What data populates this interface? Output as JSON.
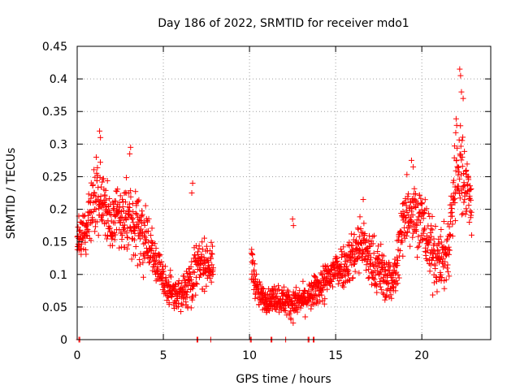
{
  "chart_data": {
    "type": "scatter",
    "title": "Day 186 of 2022, SRMTID for receiver mdo1",
    "xlabel": "GPS time / hours",
    "ylabel": "SRMTID / TECUs",
    "xlim": [
      0,
      24
    ],
    "ylim": [
      0,
      0.45
    ],
    "x_ticks": [
      0,
      5,
      10,
      15,
      20
    ],
    "x_tick_labels": [
      "0",
      "5",
      "10",
      "15",
      "20"
    ],
    "y_ticks": [
      0,
      0.05,
      0.1,
      0.15,
      0.2,
      0.25,
      0.3,
      0.35,
      0.4,
      0.45
    ],
    "y_tick_labels": [
      "0",
      "0.05",
      "0.1",
      "0.15",
      "0.2",
      "0.25",
      "0.3",
      "0.35",
      "0.4",
      "0.45"
    ],
    "grid": true,
    "marker": "plus",
    "series": [
      {
        "name": "SRMTID",
        "color": "#ff0000",
        "profile": [
          [
            0.0,
            0.15,
            0.03
          ],
          [
            0.5,
            0.17,
            0.04
          ],
          [
            1.0,
            0.21,
            0.05
          ],
          [
            1.5,
            0.22,
            0.05
          ],
          [
            2.0,
            0.18,
            0.05
          ],
          [
            2.5,
            0.19,
            0.05
          ],
          [
            3.0,
            0.19,
            0.05
          ],
          [
            3.5,
            0.17,
            0.05
          ],
          [
            4.0,
            0.15,
            0.04
          ],
          [
            4.5,
            0.12,
            0.03
          ],
          [
            5.0,
            0.09,
            0.025
          ],
          [
            5.5,
            0.075,
            0.02
          ],
          [
            6.0,
            0.07,
            0.02
          ],
          [
            6.5,
            0.09,
            0.04
          ],
          [
            7.0,
            0.11,
            0.04
          ],
          [
            7.5,
            0.12,
            0.03
          ],
          [
            7.9,
            0.11,
            0.03
          ],
          [
            10.1,
            0.12,
            0.03
          ],
          [
            10.5,
            0.07,
            0.02
          ],
          [
            11.0,
            0.06,
            0.015
          ],
          [
            11.5,
            0.065,
            0.02
          ],
          [
            12.0,
            0.06,
            0.02
          ],
          [
            12.5,
            0.055,
            0.02
          ],
          [
            13.0,
            0.06,
            0.02
          ],
          [
            13.5,
            0.065,
            0.02
          ],
          [
            14.0,
            0.08,
            0.025
          ],
          [
            14.5,
            0.09,
            0.03
          ],
          [
            15.0,
            0.11,
            0.03
          ],
          [
            15.5,
            0.115,
            0.03
          ],
          [
            16.0,
            0.13,
            0.04
          ],
          [
            16.5,
            0.15,
            0.04
          ],
          [
            17.0,
            0.12,
            0.04
          ],
          [
            17.5,
            0.11,
            0.04
          ],
          [
            18.0,
            0.09,
            0.03
          ],
          [
            18.5,
            0.1,
            0.04
          ],
          [
            19.0,
            0.2,
            0.05
          ],
          [
            19.5,
            0.2,
            0.05
          ],
          [
            20.0,
            0.18,
            0.05
          ],
          [
            20.5,
            0.14,
            0.05
          ],
          [
            21.0,
            0.12,
            0.04
          ],
          [
            21.5,
            0.13,
            0.05
          ],
          [
            22.0,
            0.27,
            0.08
          ],
          [
            22.5,
            0.25,
            0.06
          ],
          [
            22.9,
            0.2,
            0.04
          ]
        ],
        "peaks": [
          [
            1.3,
            0.32
          ],
          [
            1.35,
            0.31
          ],
          [
            3.1,
            0.295
          ],
          [
            3.05,
            0.285
          ],
          [
            6.7,
            0.24
          ],
          [
            6.65,
            0.225
          ],
          [
            12.5,
            0.185
          ],
          [
            12.55,
            0.175
          ],
          [
            16.6,
            0.215
          ],
          [
            19.4,
            0.275
          ],
          [
            19.5,
            0.265
          ],
          [
            22.2,
            0.415
          ],
          [
            22.25,
            0.405
          ],
          [
            22.3,
            0.38
          ],
          [
            22.4,
            0.37
          ]
        ],
        "zeros": [
          0.1,
          0.15,
          6.95,
          7.0,
          7.75,
          10.05,
          10.1,
          11.25,
          11.3,
          12.1,
          13.4,
          13.45,
          13.7,
          13.75
        ]
      }
    ]
  }
}
